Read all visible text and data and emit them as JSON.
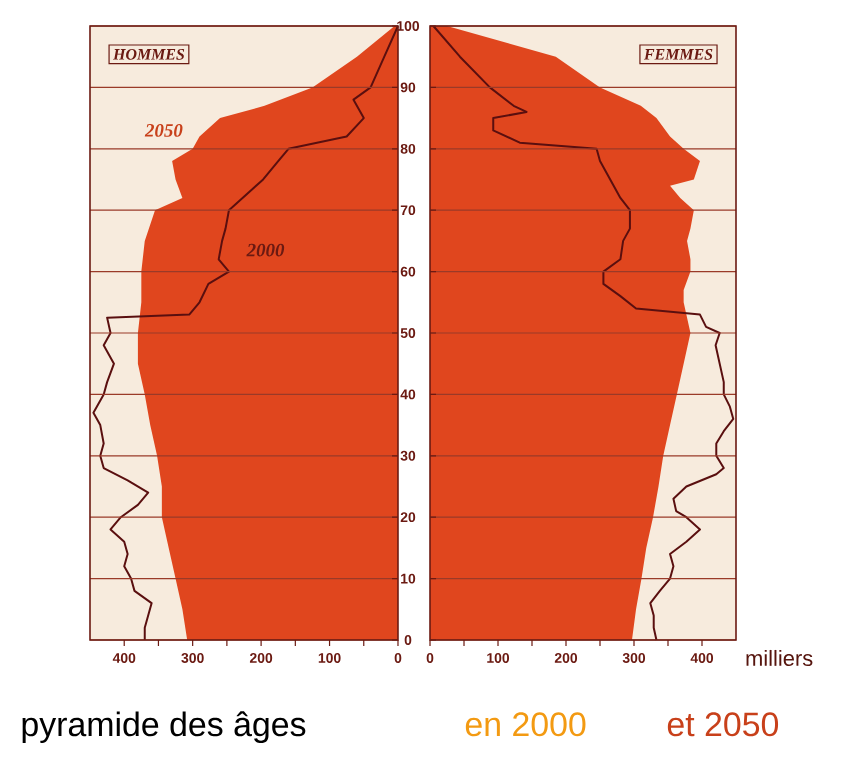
{
  "chart_data": [
    {
      "type": "area",
      "title": "HOMMES",
      "orientation": "horizontal",
      "xlim": [
        450,
        0
      ],
      "xticks": [
        400,
        {
          "value": 350,
          "label": null
        },
        300,
        {
          "value": 250,
          "label": null
        },
        200,
        {
          "value": 150,
          "label": null
        },
        100,
        {
          "value": 50,
          "label": null
        },
        0
      ],
      "ylim": [
        0,
        100
      ],
      "yticks": [
        0,
        10,
        20,
        30,
        40,
        50,
        60,
        70,
        80,
        90,
        100
      ],
      "grid": "y",
      "annotations": [
        "pyramide des âges",
        "en 2000",
        "et 2050"
      ],
      "series": [
        {
          "name": "2050",
          "type": "area",
          "color": "#e0461e",
          "x": [
            0,
            5,
            10,
            15,
            20,
            25,
            30,
            35,
            40,
            45,
            50,
            55,
            60,
            65,
            70,
            72,
            75,
            78,
            80,
            82,
            85,
            87,
            90,
            95,
            100
          ],
          "values": [
            308,
            315,
            325,
            335,
            345,
            345,
            352,
            362,
            370,
            380,
            380,
            375,
            375,
            370,
            355,
            315,
            325,
            330,
            300,
            290,
            260,
            195,
            125,
            60,
            5
          ]
        },
        {
          "name": "2000",
          "type": "line",
          "color": "#5a0f0f",
          "x": [
            0,
            2,
            4,
            6,
            8,
            10,
            12,
            14,
            16,
            18,
            20,
            22,
            24,
            26,
            28,
            30,
            32,
            35,
            37,
            40,
            42,
            45,
            48,
            50,
            52.5,
            53,
            55,
            58,
            60,
            62,
            65,
            67,
            70,
            72,
            75,
            78,
            80,
            82,
            85,
            88,
            90,
            95,
            100
          ],
          "values": [
            370,
            370,
            365,
            360,
            385,
            390,
            400,
            395,
            400,
            420,
            405,
            380,
            365,
            395,
            430,
            435,
            430,
            435,
            445,
            430,
            425,
            415,
            430,
            420,
            425,
            305,
            290,
            277,
            247,
            262,
            257,
            252,
            247,
            227,
            197,
            175,
            160,
            75,
            50,
            65,
            40,
            20,
            0
          ]
        }
      ]
    },
    {
      "type": "area",
      "title": "FEMMES",
      "orientation": "horizontal",
      "xlabel": "milliers",
      "xlim": [
        0,
        450
      ],
      "xticks": [
        0,
        {
          "value": 50,
          "label": null
        },
        100,
        {
          "value": 150,
          "label": null
        },
        200,
        {
          "value": 250,
          "label": null
        },
        300,
        {
          "value": 350,
          "label": null
        },
        400
      ],
      "ylim": [
        0,
        100
      ],
      "yticks": [
        0,
        10,
        20,
        30,
        40,
        50,
        60,
        70,
        80,
        90,
        100
      ],
      "tick_labels": "x",
      "grid": "y",
      "series": [
        {
          "type": "area",
          "color": "#e0461e",
          "x": [
            0,
            5,
            10,
            15,
            20,
            25,
            30,
            35,
            40,
            45,
            50,
            55,
            57,
            60,
            62,
            65,
            67,
            70,
            72,
            74,
            75,
            78,
            80,
            82,
            85,
            87,
            90,
            95,
            100
          ],
          "values": [
            297,
            303,
            311,
            318,
            328,
            336,
            343,
            353,
            363,
            373,
            383,
            373,
            373,
            383,
            383,
            378,
            383,
            388,
            368,
            353,
            388,
            397,
            373,
            353,
            333,
            310,
            250,
            185,
            25
          ]
        },
        {
          "type": "line",
          "color": "#5a0f0f",
          "x": [
            0,
            2,
            4,
            6,
            8,
            10,
            12,
            14,
            16,
            18,
            20,
            21,
            23,
            25,
            27,
            28,
            30,
            32,
            34,
            36,
            38,
            40,
            42,
            45,
            48,
            50,
            51,
            53,
            54,
            56,
            58,
            60,
            62,
            65,
            67,
            70,
            72,
            75,
            78,
            80,
            81,
            83,
            85,
            86,
            87,
            90,
            95,
            100
          ],
          "values": [
            333,
            329,
            329,
            324,
            338,
            353,
            358,
            353,
            377,
            397,
            377,
            362,
            358,
            377,
            421,
            432,
            421,
            421,
            432,
            446,
            441,
            432,
            432,
            426,
            420,
            426,
            406,
            397,
            303,
            280,
            255,
            255,
            280,
            284,
            294,
            294,
            280,
            265,
            250,
            245,
            132,
            93,
            93,
            142,
            123,
            88,
            44,
            5
          ]
        }
      ]
    }
  ]
}
